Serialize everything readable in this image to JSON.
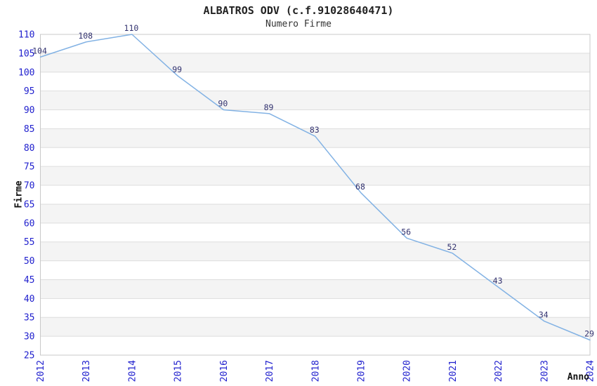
{
  "chart_data": {
    "type": "line",
    "title": "ALBATROS ODV (c.f.91028640471)",
    "subtitle": "Numero Firme",
    "xlabel": "Anno",
    "ylabel": "Firme",
    "x": [
      "2012",
      "2013",
      "2014",
      "2015",
      "2016",
      "2017",
      "2018",
      "2019",
      "2020",
      "2021",
      "2022",
      "2023",
      "2024"
    ],
    "series": [
      {
        "name": "Numero Firme",
        "values": [
          104,
          108,
          110,
          99,
          90,
          89,
          83,
          68,
          56,
          52,
          43,
          34,
          29
        ]
      }
    ],
    "data_labels_visible": true,
    "ylim": [
      25,
      110
    ],
    "ytick_step": 5,
    "yticks": [
      25,
      30,
      35,
      40,
      45,
      50,
      55,
      60,
      65,
      70,
      75,
      80,
      85,
      90,
      95,
      100,
      105,
      110
    ],
    "grid": "horizontal-alternating-bands",
    "legend_position": "none",
    "colors": {
      "line": "#82B2E4",
      "tick_labels": "#2121CE",
      "data_labels": "#333370",
      "band_fill": "#F4F4F4",
      "band_separator": "#DDDDDD",
      "plot_border": "#C9C9C9",
      "background": "#FFFFFF",
      "title_text": "#222222"
    }
  }
}
